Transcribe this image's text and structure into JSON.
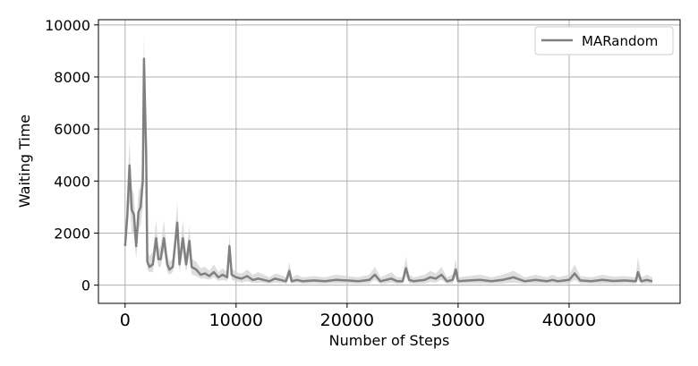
{
  "chart_data": {
    "type": "line",
    "title": "",
    "xlabel": "Number of Steps",
    "ylabel": "Waiting Time",
    "xlim": [
      -2400,
      50000
    ],
    "ylim": [
      -700,
      10200
    ],
    "xticks": [
      0,
      10000,
      20000,
      30000,
      40000
    ],
    "xtick_labels": [
      "0",
      "10000",
      "20000",
      "30000",
      "40000"
    ],
    "yticks": [
      0,
      2000,
      4000,
      6000,
      8000,
      10000
    ],
    "ytick_labels": [
      "0",
      "2000",
      "4000",
      "6000",
      "8000",
      "10000"
    ],
    "grid": true,
    "legend_position": "top-right",
    "series": [
      {
        "name": "MARandom",
        "color": "#808080",
        "band_color": "#d3d3d3",
        "x": [
          0,
          200,
          400,
          600,
          800,
          1000,
          1200,
          1400,
          1600,
          1700,
          1800,
          1900,
          2000,
          2200,
          2500,
          2800,
          3000,
          3200,
          3500,
          3800,
          4000,
          4300,
          4700,
          4900,
          5200,
          5500,
          5800,
          6000,
          6400,
          6800,
          7200,
          7600,
          8000,
          8400,
          8800,
          9200,
          9400,
          9600,
          10000,
          10500,
          11000,
          11500,
          12000,
          12500,
          13000,
          13500,
          14000,
          14500,
          14800,
          15000,
          15500,
          16000,
          17000,
          18000,
          19000,
          20000,
          21000,
          22000,
          22500,
          23000,
          23500,
          24000,
          24500,
          25000,
          25300,
          25600,
          26000,
          27000,
          27500,
          28000,
          28500,
          29000,
          29500,
          29800,
          30000,
          31000,
          32000,
          33000,
          34000,
          35000,
          36000,
          37000,
          38000,
          38500,
          39000,
          40000,
          40500,
          41000,
          42000,
          43000,
          44000,
          45000,
          46000,
          46200,
          46500,
          47000,
          47500
        ],
        "values": [
          1500,
          2700,
          4600,
          2900,
          2700,
          1500,
          2800,
          3000,
          4000,
          8700,
          6800,
          5100,
          900,
          700,
          800,
          1800,
          1000,
          1000,
          1800,
          800,
          600,
          700,
          2400,
          800,
          1800,
          800,
          1700,
          700,
          600,
          400,
          450,
          350,
          500,
          300,
          400,
          300,
          1500,
          400,
          300,
          250,
          350,
          200,
          250,
          200,
          150,
          250,
          200,
          150,
          550,
          150,
          200,
          150,
          180,
          150,
          200,
          180,
          150,
          200,
          400,
          150,
          200,
          250,
          150,
          150,
          650,
          200,
          150,
          200,
          300,
          250,
          400,
          150,
          200,
          600,
          150,
          180,
          200,
          150,
          200,
          300,
          150,
          200,
          150,
          200,
          150,
          200,
          450,
          180,
          150,
          200,
          160,
          180,
          150,
          500,
          150,
          200,
          150
        ],
        "lower": [
          1300,
          2000,
          3200,
          2000,
          1900,
          1000,
          2100,
          2300,
          3000,
          7600,
          5700,
          4000,
          600,
          500,
          500,
          1300,
          700,
          700,
          1300,
          500,
          400,
          500,
          1800,
          500,
          1300,
          500,
          1200,
          400,
          350,
          250,
          250,
          200,
          300,
          150,
          200,
          150,
          1100,
          200,
          150,
          100,
          150,
          80,
          100,
          80,
          50,
          100,
          80,
          50,
          300,
          50,
          80,
          50,
          60,
          50,
          60,
          60,
          50,
          60,
          200,
          50,
          60,
          100,
          50,
          50,
          350,
          60,
          50,
          60,
          120,
          100,
          200,
          50,
          60,
          300,
          50,
          60,
          60,
          50,
          60,
          100,
          50,
          60,
          50,
          60,
          50,
          60,
          200,
          60,
          50,
          60,
          50,
          60,
          50,
          200,
          50,
          60,
          50
        ],
        "upper": [
          1700,
          3500,
          5600,
          3700,
          3500,
          2000,
          3600,
          3800,
          5100,
          9600,
          8000,
          6300,
          1400,
          1100,
          1300,
          2500,
          1400,
          1500,
          2500,
          1200,
          900,
          1000,
          3200,
          1200,
          2500,
          1200,
          2300,
          1000,
          900,
          650,
          700,
          550,
          800,
          500,
          650,
          500,
          2000,
          650,
          500,
          450,
          600,
          400,
          500,
          400,
          300,
          450,
          400,
          300,
          900,
          300,
          400,
          300,
          350,
          300,
          400,
          350,
          300,
          400,
          700,
          300,
          400,
          500,
          300,
          300,
          1100,
          400,
          300,
          400,
          550,
          450,
          700,
          300,
          400,
          1000,
          300,
          350,
          400,
          300,
          400,
          550,
          300,
          400,
          300,
          400,
          300,
          400,
          800,
          350,
          300,
          400,
          320,
          350,
          300,
          1100,
          300,
          400,
          300
        ]
      }
    ]
  }
}
